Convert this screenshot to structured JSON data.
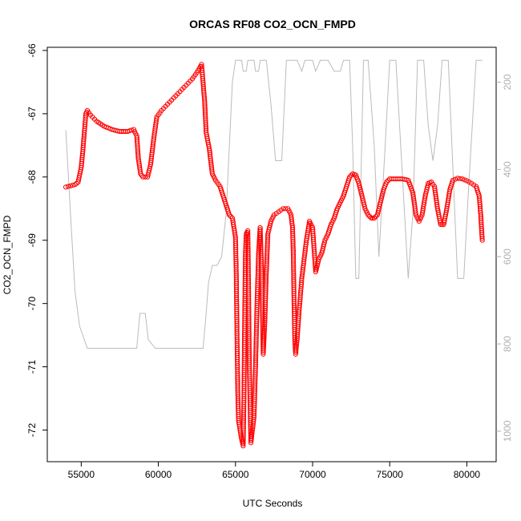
{
  "chart_data": {
    "type": "scatter",
    "title": "ORCAS RF08 CO2_OCN_FMPD",
    "xlabel": "UTC Seconds",
    "ylabel": "CO2_OCN_FMPD",
    "xlim": [
      52800,
      81900
    ],
    "ylim": [
      -72.5,
      -65.95
    ],
    "xticks": [
      55000,
      60000,
      65000,
      70000,
      75000,
      80000
    ],
    "yticks": [
      -72,
      -71,
      -70,
      -69,
      -68,
      -67,
      -66
    ],
    "y2lim": [
      1070,
      120
    ],
    "y2ticks": [
      200,
      400,
      600,
      800,
      1000
    ],
    "grid": false,
    "series": [
      {
        "color": "#ff0000",
        "marker": "open-circle",
        "points": [
          [
            54000,
            -68.16
          ],
          [
            54300,
            -68.14
          ],
          [
            54600,
            -68.12
          ],
          [
            54800,
            -68.08
          ],
          [
            55000,
            -67.85
          ],
          [
            55100,
            -67.6
          ],
          [
            55200,
            -67.3
          ],
          [
            55300,
            -67.0
          ],
          [
            55400,
            -66.95
          ],
          [
            55600,
            -67.02
          ],
          [
            56000,
            -67.12
          ],
          [
            56500,
            -67.2
          ],
          [
            57000,
            -67.25
          ],
          [
            57500,
            -67.28
          ],
          [
            58000,
            -67.28
          ],
          [
            58400,
            -67.25
          ],
          [
            58600,
            -67.35
          ],
          [
            58700,
            -67.7
          ],
          [
            58850,
            -67.95
          ],
          [
            59000,
            -68.0
          ],
          [
            59300,
            -68.0
          ],
          [
            59500,
            -67.8
          ],
          [
            59700,
            -67.4
          ],
          [
            59900,
            -67.05
          ],
          [
            60200,
            -66.95
          ],
          [
            60600,
            -66.85
          ],
          [
            61000,
            -66.75
          ],
          [
            61400,
            -66.65
          ],
          [
            61800,
            -66.55
          ],
          [
            62200,
            -66.45
          ],
          [
            62500,
            -66.35
          ],
          [
            62800,
            -66.22
          ],
          [
            63000,
            -66.8
          ],
          [
            63100,
            -67.3
          ],
          [
            63300,
            -67.55
          ],
          [
            63500,
            -67.95
          ],
          [
            63700,
            -68.05
          ],
          [
            64000,
            -68.15
          ],
          [
            64200,
            -68.3
          ],
          [
            64400,
            -68.45
          ],
          [
            64600,
            -68.6
          ],
          [
            64800,
            -68.65
          ],
          [
            65000,
            -68.95
          ],
          [
            65050,
            -69.5
          ],
          [
            65100,
            -70.5
          ],
          [
            65150,
            -71.4
          ],
          [
            65200,
            -71.85
          ],
          [
            65300,
            -72.0
          ],
          [
            65400,
            -72.15
          ],
          [
            65500,
            -72.25
          ],
          [
            65550,
            -71.5
          ],
          [
            65600,
            -70.2
          ],
          [
            65650,
            -69.2
          ],
          [
            65700,
            -68.9
          ],
          [
            65800,
            -68.85
          ],
          [
            65850,
            -69.8
          ],
          [
            65900,
            -71.0
          ],
          [
            66000,
            -72.2
          ],
          [
            66100,
            -72.0
          ],
          [
            66200,
            -71.8
          ],
          [
            66300,
            -71.0
          ],
          [
            66400,
            -70.0
          ],
          [
            66500,
            -69.2
          ],
          [
            66600,
            -68.8
          ],
          [
            66700,
            -69.5
          ],
          [
            66800,
            -70.8
          ],
          [
            66900,
            -70.3
          ],
          [
            67000,
            -69.5
          ],
          [
            67100,
            -68.9
          ],
          [
            67300,
            -68.7
          ],
          [
            67500,
            -68.6
          ],
          [
            67800,
            -68.55
          ],
          [
            68100,
            -68.5
          ],
          [
            68400,
            -68.5
          ],
          [
            68600,
            -68.6
          ],
          [
            68700,
            -68.8
          ],
          [
            68750,
            -69.2
          ],
          [
            68800,
            -70.0
          ],
          [
            68850,
            -70.6
          ],
          [
            68900,
            -70.8
          ],
          [
            69000,
            -70.55
          ],
          [
            69100,
            -70.2
          ],
          [
            69200,
            -69.9
          ],
          [
            69300,
            -69.6
          ],
          [
            69400,
            -69.4
          ],
          [
            69500,
            -69.2
          ],
          [
            69600,
            -69.0
          ],
          [
            69700,
            -68.85
          ],
          [
            69800,
            -68.7
          ],
          [
            70000,
            -68.8
          ],
          [
            70200,
            -69.5
          ],
          [
            70400,
            -69.3
          ],
          [
            70600,
            -69.2
          ],
          [
            70800,
            -69.0
          ],
          [
            71000,
            -68.9
          ],
          [
            71200,
            -68.75
          ],
          [
            71400,
            -68.65
          ],
          [
            71600,
            -68.5
          ],
          [
            71800,
            -68.4
          ],
          [
            72000,
            -68.3
          ],
          [
            72200,
            -68.15
          ],
          [
            72400,
            -68.0
          ],
          [
            72600,
            -67.95
          ],
          [
            72800,
            -67.97
          ],
          [
            73000,
            -68.1
          ],
          [
            73200,
            -68.3
          ],
          [
            73400,
            -68.5
          ],
          [
            73600,
            -68.6
          ],
          [
            73800,
            -68.65
          ],
          [
            74000,
            -68.65
          ],
          [
            74200,
            -68.6
          ],
          [
            74400,
            -68.4
          ],
          [
            74600,
            -68.2
          ],
          [
            74800,
            -68.08
          ],
          [
            75000,
            -68.03
          ],
          [
            75400,
            -68.03
          ],
          [
            75800,
            -68.03
          ],
          [
            76200,
            -68.05
          ],
          [
            76500,
            -68.25
          ],
          [
            76700,
            -68.6
          ],
          [
            76900,
            -68.7
          ],
          [
            77100,
            -68.6
          ],
          [
            77300,
            -68.3
          ],
          [
            77500,
            -68.1
          ],
          [
            77700,
            -68.08
          ],
          [
            77900,
            -68.15
          ],
          [
            78100,
            -68.5
          ],
          [
            78300,
            -68.75
          ],
          [
            78500,
            -68.75
          ],
          [
            78700,
            -68.5
          ],
          [
            78900,
            -68.2
          ],
          [
            79100,
            -68.05
          ],
          [
            79400,
            -68.02
          ],
          [
            79700,
            -68.03
          ],
          [
            80000,
            -68.06
          ],
          [
            80300,
            -68.1
          ],
          [
            80600,
            -68.15
          ],
          [
            80800,
            -68.3
          ],
          [
            80900,
            -68.6
          ],
          [
            81000,
            -69.0
          ]
        ]
      },
      {
        "color": "#bbbbbb",
        "axis": "right",
        "style": "line",
        "points": [
          [
            54000,
            310
          ],
          [
            54300,
            500
          ],
          [
            54600,
            680
          ],
          [
            54900,
            760
          ],
          [
            55400,
            810
          ],
          [
            56000,
            810
          ],
          [
            57000,
            810
          ],
          [
            58000,
            810
          ],
          [
            58600,
            810
          ],
          [
            58800,
            730
          ],
          [
            58900,
            730
          ],
          [
            59150,
            730
          ],
          [
            59350,
            790
          ],
          [
            59800,
            810
          ],
          [
            60200,
            810
          ],
          [
            61000,
            810
          ],
          [
            62000,
            810
          ],
          [
            62900,
            810
          ],
          [
            63100,
            730
          ],
          [
            63250,
            660
          ],
          [
            63500,
            620
          ],
          [
            63800,
            620
          ],
          [
            64100,
            600
          ],
          [
            64400,
            500
          ],
          [
            64800,
            200
          ],
          [
            65000,
            150
          ],
          [
            65400,
            150
          ],
          [
            65500,
            175
          ],
          [
            65700,
            175
          ],
          [
            65800,
            150
          ],
          [
            66200,
            150
          ],
          [
            66300,
            175
          ],
          [
            66500,
            175
          ],
          [
            66600,
            150
          ],
          [
            67000,
            150
          ],
          [
            67300,
            250
          ],
          [
            67600,
            380
          ],
          [
            68000,
            380
          ],
          [
            68300,
            150
          ],
          [
            69000,
            150
          ],
          [
            69300,
            175
          ],
          [
            69500,
            150
          ],
          [
            70000,
            150
          ],
          [
            70200,
            175
          ],
          [
            70500,
            150
          ],
          [
            71000,
            150
          ],
          [
            71400,
            175
          ],
          [
            71800,
            175
          ],
          [
            72000,
            150
          ],
          [
            72400,
            150
          ],
          [
            72600,
            350
          ],
          [
            72800,
            650
          ],
          [
            73000,
            650
          ],
          [
            73300,
            150
          ],
          [
            73600,
            150
          ],
          [
            74000,
            350
          ],
          [
            74300,
            600
          ],
          [
            74700,
            350
          ],
          [
            75000,
            150
          ],
          [
            75400,
            150
          ],
          [
            75800,
            400
          ],
          [
            76200,
            650
          ],
          [
            76500,
            500
          ],
          [
            76800,
            150
          ],
          [
            77200,
            150
          ],
          [
            77500,
            300
          ],
          [
            77800,
            380
          ],
          [
            78100,
            300
          ],
          [
            78400,
            150
          ],
          [
            78800,
            150
          ],
          [
            79100,
            400
          ],
          [
            79400,
            650
          ],
          [
            79800,
            650
          ],
          [
            80100,
            450
          ],
          [
            80600,
            150
          ],
          [
            81000,
            150
          ]
        ]
      }
    ]
  }
}
